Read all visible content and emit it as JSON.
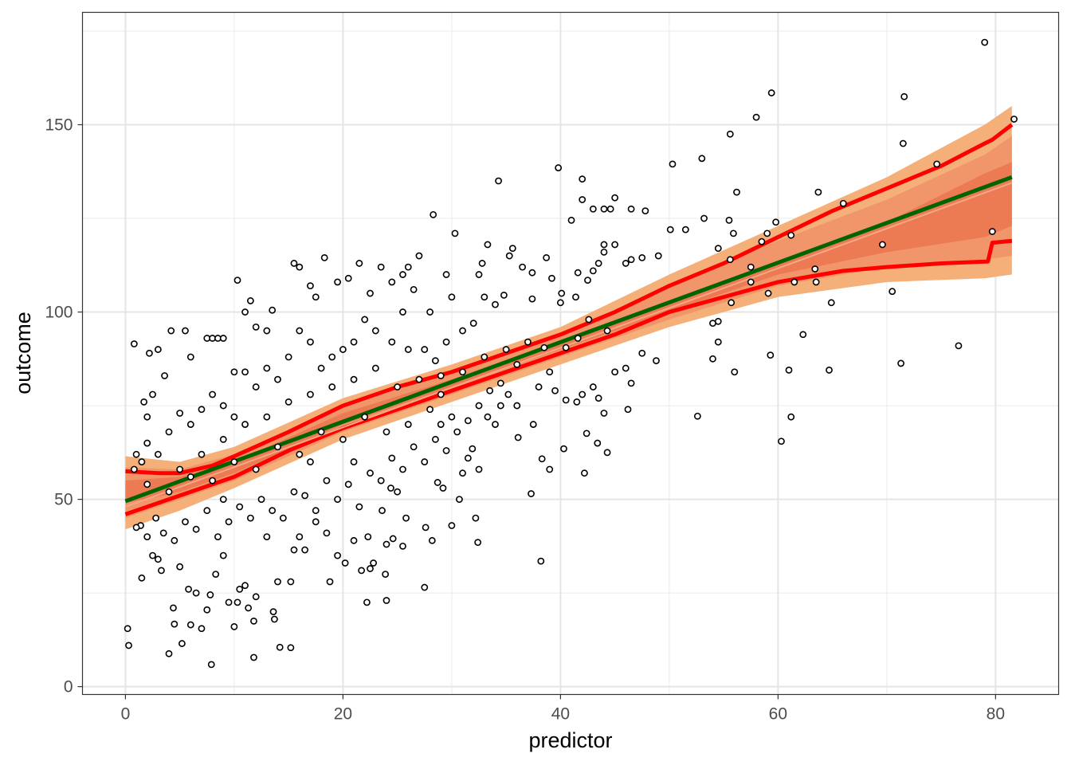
{
  "chart_data": {
    "type": "scatter",
    "title": "",
    "xlabel": "predictor",
    "ylabel": "outcome",
    "xlim": [
      -3.95,
      85.8
    ],
    "ylim": [
      -2.1,
      180
    ],
    "x_ticks": [
      0,
      20,
      40,
      60,
      80
    ],
    "x_tick_labels": [
      "0",
      "20",
      "40",
      "60",
      "80"
    ],
    "y_ticks": [
      0,
      50,
      100,
      150
    ],
    "y_tick_labels": [
      "0",
      "50",
      "100",
      "150"
    ],
    "x_minor": [
      10,
      30,
      50,
      70
    ],
    "y_minor": [
      25,
      75,
      125,
      175
    ],
    "grid": true,
    "colors": {
      "outer_band": "#F5B07A",
      "mid_band": "#F1956A",
      "inner_band": "#EC7A52",
      "median": "#F4A889",
      "fit": "#006400",
      "interval": "#FF0000",
      "point_fill": "#FFFFFF",
      "point_stroke": "#000000"
    },
    "fit_line": {
      "x": [
        0,
        81.5
      ],
      "y": [
        49.5,
        136
      ]
    },
    "interval_upper": {
      "x": [
        0,
        3,
        5,
        8,
        10,
        15,
        20,
        25,
        30,
        35,
        40,
        45,
        50,
        55,
        60,
        65,
        70,
        75,
        79,
        79.7,
        81.5
      ],
      "y": [
        57.5,
        57,
        57,
        59,
        61.5,
        68,
        75,
        80,
        84,
        89,
        94,
        100,
        107,
        113,
        120,
        127,
        133,
        139,
        145,
        146,
        150
      ]
    },
    "interval_lower": {
      "x": [
        0,
        3,
        5,
        8,
        10,
        15,
        20,
        25,
        30,
        35,
        40,
        45,
        50,
        55,
        60,
        63,
        66,
        70,
        75,
        79.3,
        79.7,
        81.5
      ],
      "y": [
        46,
        49,
        51,
        54,
        56,
        63,
        69,
        74,
        79,
        84,
        89,
        94,
        100,
        104,
        108,
        109.5,
        111,
        112,
        113,
        113.5,
        118.5,
        119
      ]
    },
    "bands": {
      "x": [
        0,
        5,
        10,
        20,
        30,
        40,
        50,
        60,
        70,
        79,
        81.5
      ],
      "outer_upper": [
        61.5,
        60,
        64,
        77,
        86,
        96,
        110,
        123,
        136,
        150,
        155
      ],
      "outer_lower": [
        42,
        47,
        53,
        66,
        76,
        86,
        96,
        104,
        108,
        109,
        110
      ],
      "mid_upper": [
        58.5,
        58,
        62,
        75,
        84,
        94,
        107,
        119,
        130,
        142,
        147
      ],
      "mid_lower": [
        45,
        50,
        55,
        68,
        78,
        88,
        98,
        107,
        112,
        114,
        115
      ],
      "inner_upper": [
        55,
        56,
        60,
        73,
        82,
        92,
        103,
        113,
        124,
        137,
        140
      ],
      "inner_lower": [
        49,
        52,
        57,
        70,
        80,
        90,
        100,
        110,
        116,
        120,
        123
      ]
    },
    "points": [
      [
        0.2,
        15.5
      ],
      [
        0.3,
        11
      ],
      [
        0.8,
        91.5
      ],
      [
        7.9,
        5.9
      ],
      [
        11.8,
        7.8
      ],
      [
        14.2,
        10.5
      ],
      [
        15.2,
        10.4
      ],
      [
        4,
        8.8
      ],
      [
        5.2,
        11.5
      ],
      [
        34.3,
        135
      ],
      [
        39.8,
        138.5
      ],
      [
        42,
        135.5
      ],
      [
        28.3,
        126
      ],
      [
        30.3,
        121
      ],
      [
        38.2,
        33.5
      ],
      [
        59.4,
        158.5
      ],
      [
        58,
        152
      ],
      [
        55.6,
        147.5
      ],
      [
        50.3,
        139.5
      ],
      [
        53,
        141
      ],
      [
        71.6,
        157.5
      ],
      [
        71.5,
        145
      ],
      [
        74.6,
        139.5
      ],
      [
        79,
        172
      ],
      [
        81.7,
        151.5
      ],
      [
        79.7,
        121.5
      ],
      [
        69.6,
        118
      ],
      [
        70.5,
        105.5
      ],
      [
        71.3,
        86.3
      ],
      [
        76.6,
        91
      ],
      [
        60.3,
        65.5
      ],
      [
        61.2,
        72
      ],
      [
        52.6,
        72.2
      ],
      [
        56,
        84
      ],
      [
        59.3,
        88.5
      ],
      [
        62.3,
        94
      ],
      [
        63.7,
        132
      ],
      [
        66,
        129
      ],
      [
        64.9,
        102.5
      ],
      [
        64.7,
        84.5
      ],
      [
        63.4,
        111.5
      ],
      [
        63.5,
        108
      ],
      [
        61.5,
        108
      ],
      [
        61.2,
        120.5
      ],
      [
        59.8,
        124
      ],
      [
        59,
        121
      ],
      [
        58.5,
        118.8
      ],
      [
        56.2,
        132
      ],
      [
        55.9,
        121
      ],
      [
        55.5,
        124.5
      ],
      [
        53.2,
        125
      ],
      [
        51.5,
        122
      ],
      [
        50.1,
        122
      ],
      [
        54.5,
        117
      ],
      [
        55.6,
        114
      ],
      [
        57.5,
        112
      ],
      [
        54.5,
        97.5
      ],
      [
        54,
        97
      ],
      [
        54.5,
        92
      ],
      [
        54,
        87.5
      ],
      [
        55.7,
        102.5
      ],
      [
        57.5,
        108
      ],
      [
        59.1,
        105
      ],
      [
        61,
        84.5
      ],
      [
        47.8,
        127
      ],
      [
        45,
        130.5
      ],
      [
        44.6,
        127.5
      ],
      [
        44,
        127.5
      ],
      [
        46.5,
        127.5
      ],
      [
        43,
        127.5
      ],
      [
        42,
        130
      ],
      [
        41,
        124.5
      ],
      [
        45,
        118
      ],
      [
        44,
        118
      ],
      [
        49,
        115
      ],
      [
        47.5,
        114.5
      ],
      [
        46.5,
        114
      ],
      [
        46,
        113
      ],
      [
        44,
        116
      ],
      [
        43.5,
        113
      ],
      [
        43,
        111
      ],
      [
        42.5,
        108.5
      ],
      [
        41.6,
        110.5
      ],
      [
        41.4,
        104
      ],
      [
        40.1,
        105
      ],
      [
        40,
        102.5
      ],
      [
        39.2,
        109
      ],
      [
        38.7,
        114.5
      ],
      [
        37.4,
        110.5
      ],
      [
        36.5,
        112
      ],
      [
        35.6,
        117
      ],
      [
        33.3,
        118
      ],
      [
        35.3,
        115
      ],
      [
        32.8,
        113
      ],
      [
        34.8,
        104.5
      ],
      [
        37.4,
        103.5
      ],
      [
        42.6,
        98
      ],
      [
        44.3,
        95
      ],
      [
        41.6,
        93
      ],
      [
        40.5,
        90.5
      ],
      [
        38.5,
        90.5
      ],
      [
        39,
        84
      ],
      [
        39.5,
        79
      ],
      [
        40.5,
        76.5
      ],
      [
        41.5,
        76
      ],
      [
        42,
        78
      ],
      [
        43,
        80
      ],
      [
        43.5,
        77
      ],
      [
        45,
        84
      ],
      [
        46,
        85
      ],
      [
        46.5,
        81
      ],
      [
        47.5,
        89
      ],
      [
        48.8,
        87
      ],
      [
        46.2,
        74
      ],
      [
        44,
        73
      ],
      [
        42.4,
        67.6
      ],
      [
        43.4,
        65
      ],
      [
        44.3,
        62.5
      ],
      [
        40.3,
        63.5
      ],
      [
        39,
        58
      ],
      [
        38.3,
        60.8
      ],
      [
        42.2,
        57
      ],
      [
        37.3,
        51.5
      ],
      [
        36.1,
        66.5
      ],
      [
        37.5,
        70
      ],
      [
        36,
        75
      ],
      [
        35.2,
        78
      ],
      [
        34.5,
        75
      ],
      [
        33.3,
        72
      ],
      [
        32.5,
        58
      ],
      [
        31.5,
        61
      ],
      [
        31,
        57
      ],
      [
        30.7,
        50
      ],
      [
        30,
        43
      ],
      [
        32.2,
        45
      ],
      [
        32.4,
        38.5
      ],
      [
        31.9,
        63.5
      ],
      [
        29.2,
        53
      ],
      [
        28.7,
        54.5
      ],
      [
        28.2,
        39
      ],
      [
        27.6,
        42.5
      ],
      [
        27.5,
        26.5
      ],
      [
        25.8,
        45
      ],
      [
        25.5,
        37.5
      ],
      [
        24.6,
        39.5
      ],
      [
        24,
        38
      ],
      [
        23.6,
        47
      ],
      [
        23.9,
        30
      ],
      [
        22.8,
        33
      ],
      [
        22.5,
        31.5
      ],
      [
        22.2,
        22.5
      ],
      [
        24,
        23
      ],
      [
        24.4,
        53
      ],
      [
        22.3,
        40
      ],
      [
        21.7,
        31
      ],
      [
        21,
        39
      ],
      [
        20.2,
        33
      ],
      [
        19.5,
        35
      ],
      [
        18.8,
        28
      ],
      [
        18.5,
        41
      ],
      [
        17.5,
        44
      ],
      [
        16.5,
        36.5
      ],
      [
        16,
        40
      ],
      [
        15.5,
        36.5
      ],
      [
        15.2,
        28
      ],
      [
        14,
        28
      ],
      [
        13.6,
        20
      ],
      [
        13.7,
        18
      ],
      [
        12,
        24
      ],
      [
        11.8,
        17.5
      ],
      [
        11.3,
        21
      ],
      [
        11,
        27
      ],
      [
        10.3,
        22.5
      ],
      [
        10.5,
        26
      ],
      [
        10,
        16
      ],
      [
        9.5,
        22.5
      ],
      [
        9,
        35
      ],
      [
        8.3,
        30
      ],
      [
        7.8,
        24.5
      ],
      [
        7.5,
        20.5
      ],
      [
        7,
        15.5
      ],
      [
        6.5,
        25
      ],
      [
        5.8,
        26
      ],
      [
        6,
        16.5
      ],
      [
        4.4,
        21
      ],
      [
        4.5,
        16.7
      ],
      [
        5,
        32
      ],
      [
        3.3,
        31
      ],
      [
        3,
        34
      ],
      [
        2.5,
        35
      ],
      [
        1.4,
        43
      ],
      [
        1,
        42.5
      ],
      [
        1.5,
        29
      ],
      [
        2,
        40
      ],
      [
        2.8,
        45
      ],
      [
        3.5,
        41
      ],
      [
        4.5,
        39
      ],
      [
        5.5,
        44
      ],
      [
        6.5,
        42
      ],
      [
        7.5,
        47
      ],
      [
        8.5,
        40
      ],
      [
        9.5,
        44
      ],
      [
        10.5,
        48
      ],
      [
        11.5,
        45
      ],
      [
        12.5,
        50
      ],
      [
        13.5,
        47
      ],
      [
        14.5,
        45
      ],
      [
        15.5,
        52
      ],
      [
        16.5,
        51
      ],
      [
        17.5,
        47
      ],
      [
        18.5,
        55
      ],
      [
        19.5,
        50
      ],
      [
        20.5,
        54
      ],
      [
        21.5,
        48
      ],
      [
        22.5,
        57
      ],
      [
        23.5,
        55
      ],
      [
        24.5,
        61
      ],
      [
        25.5,
        58
      ],
      [
        26.5,
        64
      ],
      [
        27.5,
        60
      ],
      [
        28.5,
        66
      ],
      [
        29.5,
        63
      ],
      [
        30.5,
        68
      ],
      [
        31.5,
        71
      ],
      [
        32.5,
        75
      ],
      [
        33.5,
        79
      ],
      [
        34.5,
        81
      ],
      [
        0.8,
        58
      ],
      [
        1.5,
        60
      ],
      [
        2,
        72
      ],
      [
        2.5,
        78
      ],
      [
        1.7,
        76
      ],
      [
        3,
        90
      ],
      [
        2.2,
        89
      ],
      [
        3.6,
        83
      ],
      [
        4.2,
        95
      ],
      [
        5.5,
        95
      ],
      [
        6,
        88
      ],
      [
        7.5,
        93
      ],
      [
        8,
        93
      ],
      [
        8.5,
        93
      ],
      [
        9,
        93
      ],
      [
        10,
        84
      ],
      [
        11,
        100
      ],
      [
        11.5,
        103
      ],
      [
        12,
        96
      ],
      [
        13,
        95
      ],
      [
        13.5,
        100.5
      ],
      [
        10.3,
        108.5
      ],
      [
        15.5,
        113
      ],
      [
        16,
        112
      ],
      [
        18.3,
        114.5
      ],
      [
        17,
        107
      ],
      [
        17.5,
        104
      ],
      [
        19.5,
        108
      ],
      [
        20.5,
        109
      ],
      [
        21.5,
        113
      ],
      [
        22.5,
        105
      ],
      [
        23.5,
        112
      ],
      [
        24.5,
        108
      ],
      [
        25.5,
        110
      ],
      [
        26,
        112
      ],
      [
        27,
        115
      ],
      [
        26.5,
        106
      ],
      [
        25.5,
        100
      ],
      [
        28,
        100
      ],
      [
        29.5,
        110
      ],
      [
        30,
        104
      ],
      [
        31,
        95
      ],
      [
        32,
        97
      ],
      [
        33,
        104
      ],
      [
        32.5,
        110
      ],
      [
        34,
        102
      ],
      [
        27.5,
        90
      ],
      [
        28.5,
        87
      ],
      [
        29,
        83
      ],
      [
        29.5,
        92
      ],
      [
        26,
        90
      ],
      [
        24.5,
        92
      ],
      [
        23,
        95
      ],
      [
        22,
        98
      ],
      [
        21,
        92
      ],
      [
        20,
        90
      ],
      [
        19,
        88
      ],
      [
        18,
        85
      ],
      [
        17,
        92
      ],
      [
        16,
        95
      ],
      [
        15,
        88
      ],
      [
        14,
        82
      ],
      [
        13,
        85
      ],
      [
        12,
        80
      ],
      [
        11,
        84
      ],
      [
        10,
        72
      ],
      [
        9,
        75
      ],
      [
        8,
        78
      ],
      [
        7,
        74
      ],
      [
        6,
        70
      ],
      [
        5,
        73
      ],
      [
        4,
        68
      ],
      [
        3,
        62
      ],
      [
        2,
        65
      ],
      [
        1,
        62
      ],
      [
        5,
        58
      ],
      [
        7,
        62
      ],
      [
        9,
        66
      ],
      [
        11,
        70
      ],
      [
        13,
        72
      ],
      [
        15,
        76
      ],
      [
        17,
        78
      ],
      [
        19,
        80
      ],
      [
        21,
        82
      ],
      [
        23,
        85
      ],
      [
        25,
        80
      ],
      [
        27,
        82
      ],
      [
        29,
        78
      ],
      [
        31,
        84
      ],
      [
        33,
        88
      ],
      [
        35,
        90
      ],
      [
        37,
        92
      ],
      [
        36,
        86
      ],
      [
        38,
        80
      ],
      [
        34,
        70
      ],
      [
        30,
        72
      ],
      [
        26,
        70
      ],
      [
        22,
        72
      ],
      [
        18,
        68
      ],
      [
        14,
        64
      ],
      [
        10,
        60
      ],
      [
        6,
        56
      ],
      [
        2,
        54
      ],
      [
        4,
        52
      ],
      [
        8,
        55
      ],
      [
        12,
        58
      ],
      [
        16,
        62
      ],
      [
        20,
        66
      ],
      [
        24,
        68
      ],
      [
        28,
        74
      ],
      [
        9,
        50
      ],
      [
        13,
        40
      ],
      [
        17,
        60
      ],
      [
        21,
        60
      ],
      [
        25,
        52
      ],
      [
        29,
        70
      ]
    ]
  }
}
